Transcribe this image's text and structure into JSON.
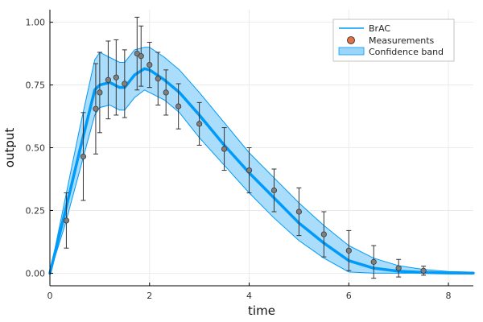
{
  "chart_data": {
    "type": "line",
    "xlabel": "time",
    "ylabel": "output",
    "xlim": [
      0,
      8.5
    ],
    "ylim": [
      -0.05,
      1.05
    ],
    "x_ticks": [
      0,
      2,
      4,
      6,
      8
    ],
    "x_tick_labels": [
      "0",
      "2",
      "4",
      "6",
      "8"
    ],
    "y_ticks": [
      0,
      0.25,
      0.5,
      0.75,
      1.0
    ],
    "y_tick_labels": [
      "0.00",
      "0.25",
      "0.50",
      "0.75",
      "1.00"
    ],
    "grid": true,
    "legend_position": "top-right",
    "legend": {
      "line": "BrAC",
      "points": "Measurements",
      "band": "Confidence band"
    },
    "colors": {
      "line": "#009af9",
      "band": "#9bd6fa",
      "points": "#7f7f7f",
      "legend_marker": "#e26f46",
      "errorbar": "#333333"
    },
    "series": [
      {
        "name": "BrAC",
        "x": [
          0,
          0.3,
          0.6,
          0.9,
          1.0,
          1.2,
          1.4,
          1.5,
          1.7,
          1.9,
          2.0,
          2.3,
          2.6,
          3.0,
          3.5,
          4.0,
          4.5,
          5.0,
          5.5,
          6.0,
          6.5,
          7.0,
          7.5,
          8.0,
          8.5
        ],
        "y": [
          0,
          0.24,
          0.49,
          0.73,
          0.75,
          0.76,
          0.74,
          0.74,
          0.79,
          0.815,
          0.81,
          0.77,
          0.72,
          0.63,
          0.51,
          0.4,
          0.3,
          0.2,
          0.12,
          0.05,
          0.02,
          0.008,
          0.003,
          0.001,
          0.0005
        ],
        "lower": [
          0,
          0.19,
          0.41,
          0.63,
          0.66,
          0.67,
          0.65,
          0.65,
          0.7,
          0.73,
          0.72,
          0.69,
          0.64,
          0.54,
          0.43,
          0.32,
          0.22,
          0.13,
          0.06,
          0.005,
          0.0,
          0.0,
          0.0,
          0.0,
          0.0
        ],
        "upper": [
          0,
          0.29,
          0.58,
          0.85,
          0.88,
          0.86,
          0.84,
          0.84,
          0.89,
          0.9,
          0.9,
          0.86,
          0.81,
          0.72,
          0.6,
          0.48,
          0.38,
          0.28,
          0.19,
          0.11,
          0.06,
          0.03,
          0.015,
          0.007,
          0.004
        ]
      },
      {
        "name": "Measurements",
        "x": [
          0.33,
          0.67,
          0.92,
          1.0,
          1.17,
          1.33,
          1.5,
          1.75,
          1.83,
          2.0,
          2.17,
          2.33,
          2.58,
          3.0,
          3.5,
          4.0,
          4.5,
          5.0,
          5.5,
          6.0,
          6.5,
          7.0,
          7.5
        ],
        "y": [
          0.21,
          0.465,
          0.655,
          0.72,
          0.77,
          0.78,
          0.755,
          0.875,
          0.865,
          0.83,
          0.775,
          0.72,
          0.665,
          0.595,
          0.495,
          0.41,
          0.33,
          0.245,
          0.155,
          0.09,
          0.045,
          0.02,
          0.01
        ],
        "err": [
          0.11,
          0.175,
          0.18,
          0.16,
          0.155,
          0.15,
          0.135,
          0.145,
          0.12,
          0.09,
          0.105,
          0.09,
          0.09,
          0.085,
          0.085,
          0.09,
          0.085,
          0.095,
          0.09,
          0.08,
          0.065,
          0.035,
          0.018
        ]
      }
    ]
  }
}
